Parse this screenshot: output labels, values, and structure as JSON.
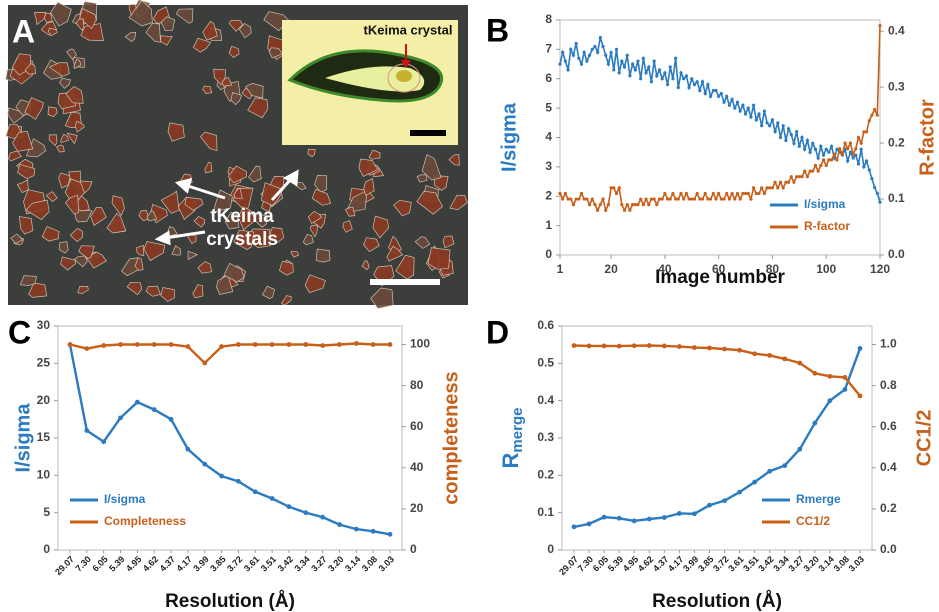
{
  "panel_labels": [
    "A",
    "B",
    "C",
    "D"
  ],
  "photo": {
    "inset_label": "tKeima crystal",
    "label_lines": [
      "tKeima",
      "crystals"
    ]
  },
  "chart_data": [
    {
      "type": "line",
      "x": [
        1,
        2,
        3,
        4,
        5,
        6,
        7,
        8,
        9,
        10,
        11,
        12,
        13,
        14,
        15,
        16,
        17,
        18,
        19,
        20,
        21,
        22,
        23,
        24,
        25,
        26,
        27,
        28,
        29,
        30,
        31,
        32,
        33,
        34,
        35,
        36,
        37,
        38,
        39,
        40,
        41,
        42,
        43,
        44,
        45,
        46,
        47,
        48,
        49,
        50,
        51,
        52,
        53,
        54,
        55,
        56,
        57,
        58,
        59,
        60,
        61,
        62,
        63,
        64,
        65,
        66,
        67,
        68,
        69,
        70,
        71,
        72,
        73,
        74,
        75,
        76,
        77,
        78,
        79,
        80,
        81,
        82,
        83,
        84,
        85,
        86,
        87,
        88,
        89,
        90,
        91,
        92,
        93,
        94,
        95,
        96,
        97,
        98,
        99,
        100,
        101,
        102,
        103,
        104,
        105,
        106,
        107,
        108,
        109,
        110,
        111,
        112,
        113,
        114,
        115,
        116,
        117,
        118,
        119,
        120
      ],
      "xlim": [
        1,
        120
      ],
      "xticks": [
        1,
        20,
        40,
        60,
        80,
        100,
        120
      ],
      "ylim": [
        0,
        8
      ],
      "yticks": [
        0,
        1,
        2,
        3,
        4,
        5,
        6,
        7,
        8
      ],
      "y2lim": [
        0,
        0.42
      ],
      "y2ticks": [
        {
          "value": 0,
          "label": "0.0"
        },
        0.1,
        0.2,
        0.3,
        0.4
      ],
      "x_label": "Image number",
      "y_label": "I/sigma",
      "y2_label": "R-factor",
      "legend": "lower right",
      "markers": "small",
      "series": [
        {
          "name": "I/sigma",
          "color": "#2a7bc2",
          "values": [
            6.5,
            6.9,
            6.6,
            6.3,
            7.0,
            6.8,
            7.2,
            6.7,
            6.5,
            6.9,
            6.6,
            6.8,
            7.0,
            7.1,
            6.9,
            7.4,
            7.1,
            6.8,
            6.5,
            6.9,
            6.3,
            7.0,
            6.2,
            6.6,
            6.4,
            6.8,
            6.1,
            6.5,
            6.3,
            6.6,
            6.0,
            6.7,
            6.2,
            6.4,
            5.9,
            6.6,
            6.1,
            6.3,
            6.0,
            6.2,
            5.8,
            6.4,
            6.0,
            6.7,
            5.7,
            6.2,
            6.0,
            6.1,
            5.7,
            6.0,
            5.8,
            5.9,
            5.6,
            5.9,
            5.5,
            5.8,
            5.4,
            5.6,
            5.6,
            5.4,
            5.5,
            5.2,
            5.4,
            5.1,
            5.3,
            5.0,
            5.2,
            4.9,
            5.1,
            4.8,
            5.0,
            4.7,
            5.1,
            4.6,
            4.8,
            4.4,
            4.9,
            4.5,
            4.4,
            4.6,
            4.2,
            4.5,
            4.0,
            4.4,
            3.9,
            4.3,
            4.1,
            3.8,
            4.2,
            3.7,
            4.0,
            3.6,
            3.9,
            3.5,
            3.8,
            3.6,
            3.3,
            3.7,
            3.4,
            3.6,
            3.5,
            3.7,
            3.3,
            3.6,
            3.5,
            3.4,
            3.6,
            3.2,
            3.5,
            3.3,
            3.4,
            3.1,
            3.6,
            3.0,
            3.2,
            2.9,
            2.6,
            2.3,
            2.1,
            1.8
          ]
        },
        {
          "name": "R-factor",
          "color": "#c8601a",
          "axis": "y2",
          "values": [
            0.11,
            0.1,
            0.11,
            0.1,
            0.1,
            0.09,
            0.1,
            0.1,
            0.11,
            0.1,
            0.1,
            0.09,
            0.1,
            0.09,
            0.08,
            0.09,
            0.1,
            0.08,
            0.09,
            0.12,
            0.12,
            0.11,
            0.12,
            0.09,
            0.08,
            0.09,
            0.08,
            0.09,
            0.09,
            0.09,
            0.1,
            0.09,
            0.1,
            0.09,
            0.1,
            0.1,
            0.09,
            0.1,
            0.1,
            0.11,
            0.1,
            0.1,
            0.11,
            0.1,
            0.1,
            0.11,
            0.1,
            0.11,
            0.1,
            0.1,
            0.1,
            0.11,
            0.1,
            0.1,
            0.11,
            0.1,
            0.1,
            0.11,
            0.1,
            0.11,
            0.1,
            0.1,
            0.11,
            0.1,
            0.11,
            0.1,
            0.11,
            0.1,
            0.11,
            0.11,
            0.11,
            0.1,
            0.12,
            0.11,
            0.11,
            0.12,
            0.11,
            0.12,
            0.12,
            0.12,
            0.13,
            0.12,
            0.13,
            0.12,
            0.13,
            0.13,
            0.14,
            0.13,
            0.14,
            0.14,
            0.14,
            0.15,
            0.14,
            0.15,
            0.15,
            0.16,
            0.15,
            0.16,
            0.17,
            0.16,
            0.17,
            0.17,
            0.18,
            0.17,
            0.19,
            0.18,
            0.2,
            0.19,
            0.2,
            0.18,
            0.19,
            0.21,
            0.2,
            0.22,
            0.22,
            0.24,
            0.25,
            0.26,
            0.25,
            0.41
          ]
        }
      ]
    },
    {
      "type": "line",
      "categories": [
        "29.07",
        "7.30",
        "6.05",
        "5.39",
        "4.95",
        "4.62",
        "4.37",
        "4.17",
        "3.99",
        "3.85",
        "3.72",
        "3.61",
        "3.51",
        "3.42",
        "3.34",
        "3.27",
        "3.20",
        "3.14",
        "3.08",
        "3.03"
      ],
      "ylim": [
        0,
        30
      ],
      "yticks": [
        0,
        5,
        10,
        15,
        20,
        25,
        30
      ],
      "y2lim": [
        0,
        109
      ],
      "y2ticks": [
        0,
        20,
        40,
        60,
        80,
        100
      ],
      "x_label": "Resolution (Å)",
      "y_label": "I/sigma",
      "y2_label": "completeness",
      "legend": "lower left",
      "markers": "dots",
      "series": [
        {
          "name": "I/sigma",
          "color": "#2a7bc2",
          "values": [
            27.5,
            16,
            14.5,
            17.7,
            19.8,
            18.8,
            17.5,
            13.5,
            11.5,
            9.9,
            9.2,
            7.8,
            6.9,
            5.8,
            5.0,
            4.4,
            3.4,
            2.8,
            2.5,
            2.1
          ]
        },
        {
          "name": "Completeness",
          "color": "#c8601a",
          "axis": "y2",
          "values": [
            100,
            98,
            99.5,
            100,
            100,
            100,
            100,
            99,
            91,
            99,
            100,
            100,
            100,
            100,
            100,
            99.5,
            100,
            100.5,
            100,
            100
          ]
        }
      ]
    },
    {
      "type": "line",
      "categories": [
        "29.07",
        "7.30",
        "6.05",
        "5.39",
        "4.95",
        "4.62",
        "4.37",
        "4.17",
        "3.99",
        "3.85",
        "3.72",
        "3.61",
        "3.51",
        "3.42",
        "3.34",
        "3.27",
        "3.20",
        "3.14",
        "3.08",
        "3.03"
      ],
      "ylim": [
        0,
        0.6
      ],
      "yticks": [
        0,
        0.1,
        0.2,
        0.3,
        0.4,
        0.5,
        0.6
      ],
      "y2lim": [
        0,
        1.09
      ],
      "y2ticks": [
        {
          "value": 0,
          "label": "0.0"
        },
        0.2,
        0.4,
        0.6,
        0.8,
        {
          "value": 1,
          "label": "1.0"
        }
      ],
      "x_label": "Resolution (Å)",
      "y_label": [
        "R",
        "merge"
      ],
      "y2_label": "CC1/2",
      "legend": "lower right",
      "markers": "dots",
      "series": [
        {
          "name": "Rmerge",
          "color": "#2a7bc2",
          "values": [
            0.062,
            0.07,
            0.088,
            0.085,
            0.078,
            0.083,
            0.087,
            0.098,
            0.097,
            0.12,
            0.132,
            0.155,
            0.182,
            0.211,
            0.226,
            0.27,
            0.34,
            0.4,
            0.43,
            0.54
          ]
        },
        {
          "name": "CC1/2",
          "color": "#c8601a",
          "axis": "y2",
          "values": [
            0.995,
            0.993,
            0.993,
            0.992,
            0.994,
            0.995,
            0.993,
            0.99,
            0.985,
            0.983,
            0.978,
            0.972,
            0.955,
            0.947,
            0.93,
            0.91,
            0.86,
            0.845,
            0.84,
            0.75
          ]
        }
      ]
    }
  ]
}
